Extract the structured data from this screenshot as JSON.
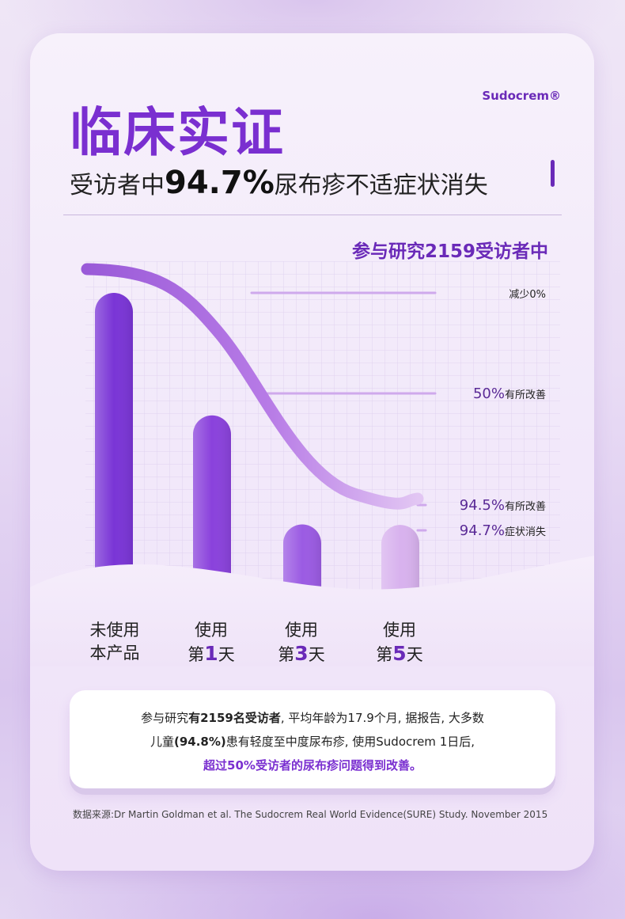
{
  "header": {
    "title": "临床实证",
    "brand": "Sudocrem®",
    "subtitle_prefix": "受访者中",
    "subtitle_highlight": "94.7%",
    "subtitle_suffix": "尿布疹不适症状消失"
  },
  "chart_data": {
    "type": "bar",
    "title": "参与研究2159受访者中",
    "categories": [
      {
        "line1": "未使用",
        "line2": "本产品"
      },
      {
        "line1": "使用",
        "line2_prefix": "第",
        "line2_num": "1",
        "line2_suffix": "天"
      },
      {
        "line1": "使用",
        "line2_prefix": "第",
        "line2_num": "3",
        "line2_suffix": "天"
      },
      {
        "line1": "使用",
        "line2_prefix": "第",
        "line2_num": "5",
        "line2_suffix": "天"
      }
    ],
    "values": [
      0,
      50,
      94.5,
      94.7
    ],
    "ylim": [
      0,
      100
    ],
    "annotations": [
      {
        "value_text": "",
        "text": "减少0%"
      },
      {
        "value_text": "50%",
        "text": "有所改善"
      },
      {
        "value_text": "94.5%",
        "text": "有所改善"
      },
      {
        "value_text": "94.7%",
        "text": "症状消失"
      }
    ],
    "colors": [
      "#7a35d6",
      "#8a42dc",
      "#9b5be3",
      "#d8b2ee"
    ]
  },
  "note": {
    "line1_a": "参与研究",
    "line1_b": "有2159名受访者",
    "line1_c": ", 平均年龄为17.9个月, 据报告, 大多数",
    "line2_a": "儿童",
    "line2_b": "(94.8%)",
    "line2_c": "患有轻度至中度尿布疹, 使用Sudocrem 1日后,",
    "line3": "超过50%受访者的尿布疹问题得到改善。"
  },
  "source": "数据来源:Dr Martin Goldman et al. The Sudocrem Real World Evidence(SURE) Study. November 2015"
}
